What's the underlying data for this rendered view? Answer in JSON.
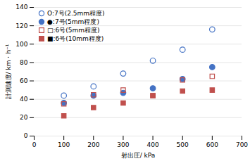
{
  "chart_data": {
    "type": "scatter",
    "xlabel": "射出圧/ kPa",
    "ylabel": "計測速度/ km・h⁻¹",
    "xlim": [
      0,
      700
    ],
    "ylim": [
      0,
      140
    ],
    "xticks": [
      0,
      100,
      200,
      300,
      400,
      500,
      600,
      700
    ],
    "yticks": [
      0,
      20,
      40,
      60,
      80,
      100,
      120,
      140
    ],
    "grid": "y",
    "legend": "upper left",
    "x": [
      100,
      200,
      300,
      400,
      500,
      600
    ],
    "series": [
      {
        "name": "O:7号(2.5mm程度)",
        "color": "#4472C4",
        "marker": "circle-open",
        "values": [
          44,
          54,
          68,
          82,
          94,
          116
        ]
      },
      {
        "name": "●:7号(5mm程度)",
        "color": "#4472C4",
        "marker": "circle",
        "values": [
          36,
          44,
          47,
          52,
          62,
          75
        ]
      },
      {
        "name": "□:6号(5mm程度)",
        "color": "#C0504D",
        "marker": "square-open",
        "values": [
          35,
          45,
          50,
          44,
          61,
          65
        ]
      },
      {
        "name": "■:6号(10mm程度)",
        "color": "#C0504D",
        "marker": "square",
        "values": [
          22,
          31,
          36,
          44,
          49,
          50
        ]
      }
    ]
  }
}
